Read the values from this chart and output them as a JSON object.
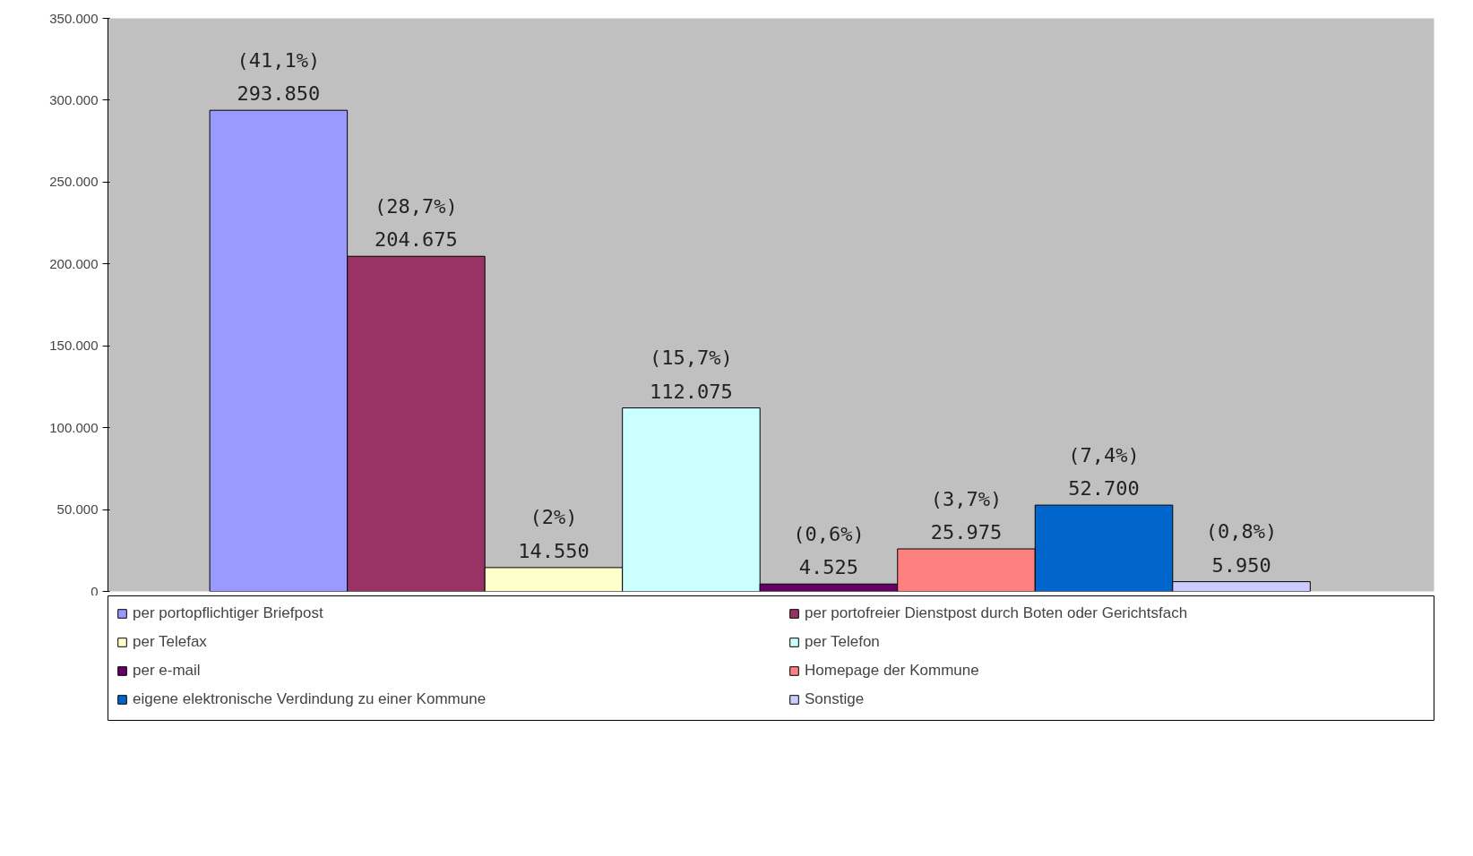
{
  "chart_data": {
    "type": "bar",
    "categories": [
      null
    ],
    "series": [
      {
        "name": "per portopflichtiger Briefpost",
        "color": "#9999ff",
        "values": [
          293850
        ],
        "value_labels": [
          "(41,1%)\n293.850"
        ]
      },
      {
        "name": "per portofreier Dienstpost durch Boten oder Gerichtsfach",
        "color": "#993366",
        "values": [
          204675
        ],
        "value_labels": [
          "(28,7%)\n204.675"
        ]
      },
      {
        "name": "per Telefax",
        "color": "#ffffcc",
        "values": [
          14550
        ],
        "value_labels": [
          "(2%)\n14.550"
        ]
      },
      {
        "name": "per Telefon",
        "color": "#ccffff",
        "values": [
          112075
        ],
        "value_labels": [
          "(15,7%)\n112.075"
        ]
      },
      {
        "name": "per e-mail",
        "color": "#660066",
        "values": [
          4525
        ],
        "value_labels": [
          "(0,6%)\n4.525"
        ]
      },
      {
        "name": "Homepage der Kommune",
        "color": "#ff8080",
        "values": [
          25975
        ],
        "value_labels": [
          "(3,7%)\n25.975"
        ]
      },
      {
        "name": "eigene elektronische Verdindung zu einer Kommune",
        "color": "#0066cc",
        "values": [
          52700
        ],
        "value_labels": [
          "(7,4%)\n52.700"
        ]
      },
      {
        "name": "Sonstige",
        "color": "#ccccff",
        "values": [
          5950
        ],
        "value_labels": [
          "(0,8%)\n5.950"
        ]
      }
    ],
    "ylim": [
      0,
      350000
    ],
    "yticks": [
      {
        "value": 0,
        "label": "0"
      },
      {
        "value": 50000,
        "label": "50.000"
      },
      {
        "value": 100000,
        "label": "100.000"
      },
      {
        "value": 150000,
        "label": "150.000"
      },
      {
        "value": 200000,
        "label": "200.000"
      },
      {
        "value": 250000,
        "label": "250.000"
      },
      {
        "value": 300000,
        "label": "300.000"
      },
      {
        "value": 350000,
        "label": "350.000"
      }
    ],
    "grid": false,
    "legend": "bottom",
    "tick_labels": "y"
  }
}
